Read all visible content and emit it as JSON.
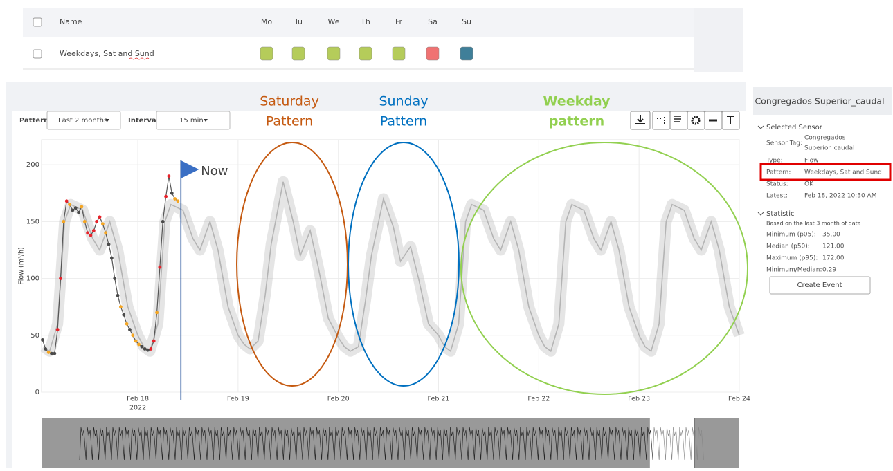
{
  "table": {
    "headers": [
      "Name",
      "Mo",
      "Tu",
      "We",
      "Th",
      "Fr",
      "Sa",
      "Su"
    ],
    "rows": [
      {
        "name": "Weekdays, Sat and Sund",
        "colors": [
          "#b5cc5a",
          "#b5cc5a",
          "#b5cc5a",
          "#b5cc5a",
          "#b5cc5a",
          "#f07272",
          "#3f7f99"
        ]
      }
    ]
  },
  "toolbar": {
    "pattern_label": "Pattern",
    "pattern_value": "Last 2 months",
    "interval_label": "Interval",
    "interval_value": "15 min"
  },
  "annotations": {
    "saturday": [
      "Saturday",
      "Pattern"
    ],
    "sunday": [
      "Sunday",
      "Pattern"
    ],
    "weekday": [
      "Weekday",
      "pattern"
    ]
  },
  "chart_data": {
    "type": "line",
    "ylabel": "Flow (m³/h)",
    "xlim": [
      17.04,
      24.0
    ],
    "ylim": [
      0,
      222
    ],
    "xticks": [
      {
        "value": 18,
        "label": "Feb 18"
      },
      {
        "value": 19,
        "label": "Feb 19"
      },
      {
        "value": 20,
        "label": "Feb 20"
      },
      {
        "value": 21,
        "label": "Feb 21"
      },
      {
        "value": 22,
        "label": "Feb 22"
      },
      {
        "value": 23,
        "label": "Feb 23"
      },
      {
        "value": 24,
        "label": "Feb 24"
      }
    ],
    "x_sublabel": "2022",
    "yticks": [
      0,
      50,
      100,
      150,
      200
    ],
    "grid": true,
    "now": {
      "x": 18.43,
      "label": "Now"
    },
    "series": [
      {
        "kind": "pattern",
        "color": "#b4b4b4",
        "x": [
          17.06,
          17.12,
          17.2,
          17.27,
          17.33,
          17.45,
          17.55,
          17.62,
          17.72,
          17.8,
          17.9,
          18,
          18.06,
          18.12,
          18.2,
          18.27,
          18.33,
          18.45,
          18.55,
          18.62,
          18.72,
          18.8,
          18.9,
          19,
          19.06,
          19.12,
          19.2,
          19.27,
          19.33,
          19.45,
          19.55,
          19.62,
          19.72,
          19.8,
          19.9,
          20,
          20.06,
          20.12,
          20.2,
          20.27,
          20.33,
          20.45,
          20.55,
          20.62,
          20.72,
          20.8,
          20.9,
          21,
          21.06,
          21.12,
          21.2,
          21.27,
          21.33,
          21.45,
          21.55,
          21.62,
          21.72,
          21.8,
          21.9,
          22,
          22.06,
          22.12,
          22.2,
          22.27,
          22.33,
          22.45,
          22.55,
          22.62,
          22.72,
          22.8,
          22.9,
          23,
          23.06,
          23.12,
          23.2,
          23.27,
          23.33,
          23.45,
          23.55,
          23.62,
          23.72,
          23.8,
          23.9,
          24
        ],
        "values": [
          40,
          36,
          60,
          150,
          165,
          160,
          135,
          125,
          150,
          125,
          75,
          50,
          40,
          36,
          60,
          150,
          165,
          160,
          135,
          125,
          150,
          125,
          75,
          50,
          42,
          38,
          45,
          85,
          130,
          185,
          150,
          120,
          142,
          110,
          65,
          48,
          40,
          36,
          40,
          80,
          120,
          170,
          145,
          115,
          128,
          100,
          60,
          50,
          40,
          36,
          60,
          150,
          165,
          160,
          135,
          125,
          150,
          125,
          75,
          50,
          40,
          36,
          60,
          150,
          165,
          160,
          135,
          125,
          150,
          125,
          75,
          50,
          40,
          36,
          60,
          150,
          165,
          160,
          135,
          125,
          150,
          125,
          75,
          50
        ]
      },
      {
        "kind": "observed",
        "color": "#555555",
        "x": [
          17.05,
          17.08,
          17.11,
          17.14,
          17.17,
          17.2,
          17.23,
          17.26,
          17.29,
          17.32,
          17.35,
          17.38,
          17.41,
          17.44,
          17.47,
          17.5,
          17.53,
          17.56,
          17.59,
          17.62,
          17.65,
          17.68,
          17.71,
          17.74,
          17.77,
          17.8,
          17.83,
          17.86,
          17.89,
          17.92,
          17.95,
          17.98,
          18.01,
          18.04,
          18.07,
          18.1,
          18.13,
          18.16,
          18.19,
          18.22,
          18.25,
          18.28,
          18.31,
          18.34,
          18.37,
          18.4
        ],
        "values": [
          46,
          38,
          35,
          34,
          34,
          55,
          100,
          150,
          168,
          165,
          160,
          162,
          158,
          163,
          150,
          140,
          138,
          142,
          150,
          154,
          148,
          140,
          130,
          118,
          100,
          85,
          75,
          68,
          60,
          55,
          50,
          45,
          42,
          40,
          38,
          37,
          38,
          45,
          70,
          110,
          150,
          172,
          190,
          175,
          170,
          168
        ],
        "point_colors": [
          "#4a4a4a",
          "#4a4a4a",
          "#f5a623",
          "#4a4a4a",
          "#4a4a4a",
          "#e8222a",
          "#e8222a",
          "#f5a623",
          "#e8222a",
          "#f5a623",
          "#4a4a4a",
          "#4a4a4a",
          "#4a4a4a",
          "#f5a623",
          "#f5a623",
          "#e8222a",
          "#e8222a",
          "#e8222a",
          "#e8222a",
          "#e8222a",
          "#f5a623",
          "#f5a623",
          "#4a4a4a",
          "#4a4a4a",
          "#4a4a4a",
          "#4a4a4a",
          "#f5a623",
          "#4a4a4a",
          "#f5a623",
          "#4a4a4a",
          "#f5a623",
          "#f5a623",
          "#f5a623",
          "#4a4a4a",
          "#4a4a4a",
          "#4a4a4a",
          "#e8222a",
          "#e8222a",
          "#f5a623",
          "#e8222a",
          "#4a4a4a",
          "#e8222a",
          "#e8222a",
          "#4a4a4a",
          "#f5a623",
          "#f5a623"
        ]
      }
    ]
  },
  "sidebar": {
    "title": "Congregados Superior_caudal",
    "selected_sensor": {
      "heading": "Selected Sensor",
      "sensor_tag_label": "Sensor Tag:",
      "sensor_tag_value": [
        "Congregados",
        "Superior_caudal"
      ],
      "fields": [
        {
          "label": "Type:",
          "value": "Flow"
        },
        {
          "label": "Pattern:",
          "value": "Weekdays, Sat and Sund"
        },
        {
          "label": "Status:",
          "value": "OK"
        },
        {
          "label": "Latest:",
          "value": "Feb 18, 2022 10:30 AM"
        }
      ]
    },
    "statistic": {
      "heading": "Statistic",
      "note": "Based on the last 3 month of data",
      "fields": [
        {
          "label": "Minimum (p05):",
          "value": "35.00"
        },
        {
          "label": "Median (p50):",
          "value": "121.00"
        },
        {
          "label": "Maximum (p95):",
          "value": "172.00"
        },
        {
          "label": "Minimum/Median:",
          "value": "0.29"
        }
      ]
    },
    "button": "Create Event"
  }
}
